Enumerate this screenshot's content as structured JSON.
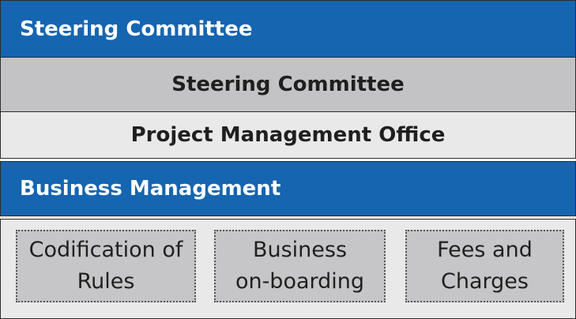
{
  "top_band": {
    "label": "Steering Committee"
  },
  "steering_row": {
    "label": "Steering Committee"
  },
  "pmo_row": {
    "label": "Project Management Office"
  },
  "business_band": {
    "label": "Business Management"
  },
  "workstreams": [
    {
      "label": "Codification of\nRules"
    },
    {
      "label": "Business\non-boarding"
    },
    {
      "label": "Fees and\nCharges"
    }
  ],
  "colors": {
    "blue": "#1565b0",
    "gray": "#c3c3c5",
    "light": "#e9e9e9"
  }
}
